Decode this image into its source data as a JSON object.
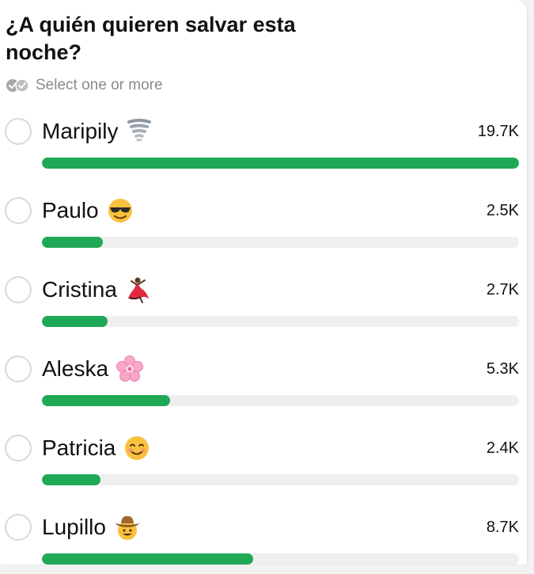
{
  "poll": {
    "question": "¿A quién quieren salvar esta noche?",
    "hint": "Select one or more",
    "hint_icon": "double-check-icon",
    "accent_color": "#1fa855",
    "options": [
      {
        "label": "Maripily",
        "emoji_icon": "tornado-icon",
        "count": "19.7K",
        "fraction": 1.0
      },
      {
        "label": "Paulo",
        "emoji_icon": "sunglasses-face-icon",
        "count": "2.5K",
        "fraction": 0.127
      },
      {
        "label": "Cristina",
        "emoji_icon": "flamenco-dancer-icon",
        "count": "2.7K",
        "fraction": 0.137
      },
      {
        "label": "Aleska",
        "emoji_icon": "cherry-blossom-icon",
        "count": "5.3K",
        "fraction": 0.269
      },
      {
        "label": "Patricia",
        "emoji_icon": "smiling-face-icon",
        "count": "2.4K",
        "fraction": 0.122
      },
      {
        "label": "Lupillo",
        "emoji_icon": "cowboy-face-icon",
        "count": "8.7K",
        "fraction": 0.442
      }
    ]
  }
}
